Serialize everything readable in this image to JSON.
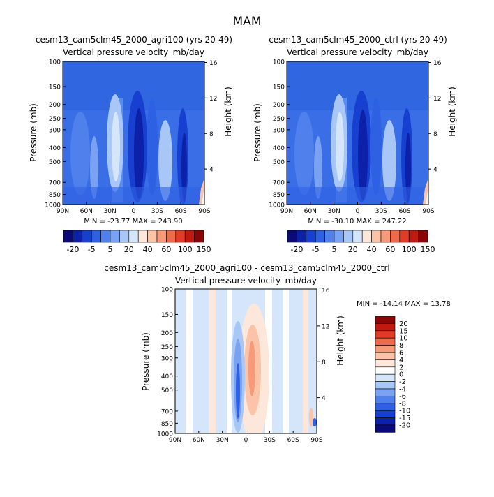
{
  "page": {
    "title": "MAM"
  },
  "chart_data": [
    {
      "type": "heatmap",
      "title": "cesm13_cam5clm45_2000_agri100 (yrs 20-49)",
      "subtitle_left": "Vertical pressure velocity",
      "subtitle_right": "mb/day",
      "ylabel": "Pressure (mb)",
      "y2label": "Height (km)",
      "xticks": [
        "90N",
        "60N",
        "30N",
        "0",
        "30S",
        "60S",
        "90S"
      ],
      "yticks": [
        "100",
        "150",
        "200",
        "250",
        "300",
        "400",
        "500",
        "700",
        "850",
        "1000"
      ],
      "y2ticks": [
        "16",
        "12",
        "8",
        "4"
      ],
      "stats": "MIN = -23.77   MAX = 243.90",
      "min": -23.77,
      "max": 243.9
    },
    {
      "type": "heatmap",
      "title": "cesm13_cam5clm45_2000_ctrl (yrs 20-49)",
      "subtitle_left": "Vertical pressure velocity",
      "subtitle_right": "mb/day",
      "ylabel": "Pressure (mb)",
      "y2label": "Height (km)",
      "xticks": [
        "90N",
        "60N",
        "30N",
        "0",
        "30S",
        "60S",
        "90S"
      ],
      "yticks": [
        "100",
        "150",
        "200",
        "250",
        "300",
        "400",
        "500",
        "700",
        "850",
        "1000"
      ],
      "y2ticks": [
        "16",
        "12",
        "8",
        "4"
      ],
      "stats": "MIN = -30.10   MAX = 247.22",
      "min": -30.1,
      "max": 247.22
    },
    {
      "type": "heatmap",
      "title": "cesm13_cam5clm45_2000_agri100 - cesm13_cam5clm45_2000_ctrl",
      "subtitle_left": "Vertical pressure velocity",
      "subtitle_right": "mb/day",
      "ylabel": "Pressure (mb)",
      "y2label": "Height (km)",
      "xticks": [
        "90N",
        "60N",
        "30N",
        "0",
        "30S",
        "60S",
        "90S"
      ],
      "yticks": [
        "100",
        "150",
        "200",
        "250",
        "300",
        "400",
        "500",
        "700",
        "850",
        "1000"
      ],
      "y2ticks": [
        "16",
        "12",
        "8",
        "4"
      ],
      "stats": "MIN = -14.14   MAX =  13.78",
      "min": -14.14,
      "max": 13.78
    }
  ],
  "colorbar_top": {
    "labels": [
      "-20",
      "-5",
      "5",
      "20",
      "40",
      "60",
      "100",
      "150"
    ],
    "colors": [
      "#0a0a78",
      "#0c20a8",
      "#1840d0",
      "#2e60e4",
      "#5080ec",
      "#7aa2f2",
      "#a8c6f6",
      "#d6e6fa",
      "#fde7db",
      "#fbc3a8",
      "#f69a7a",
      "#ee6a4c",
      "#e03c26",
      "#c01a10",
      "#8a0606"
    ]
  },
  "colorbar_diff": {
    "labels": [
      "20",
      "15",
      "10",
      "8",
      "6",
      "4",
      "2",
      "0",
      "-2",
      "-4",
      "-6",
      "-8",
      "-10",
      "-15",
      "-20"
    ],
    "colors": [
      "#8a0606",
      "#c01a10",
      "#e03c26",
      "#ee6a4c",
      "#f69a7a",
      "#fbc3a8",
      "#fde7db",
      "#ffffff",
      "#d6e6fa",
      "#a8c6f6",
      "#7aa2f2",
      "#5080ec",
      "#2e60e4",
      "#1840d0",
      "#0c20a8",
      "#0a0a78"
    ]
  }
}
